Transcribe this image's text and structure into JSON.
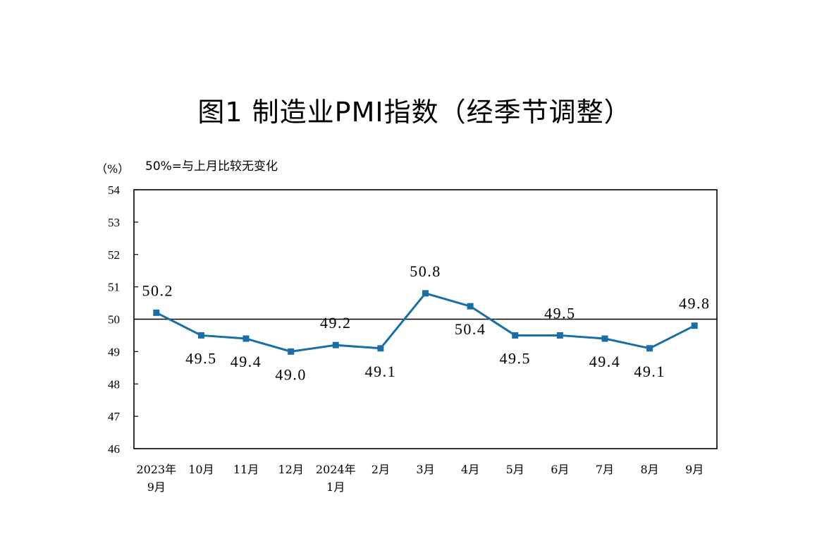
{
  "title": "图1  制造业PMI指数（经季节调整）",
  "unit_label": "（%）",
  "note": "50%=与上月比较无变化",
  "colors": {
    "series": "#1a6ea8",
    "marker": "#1a6ea8",
    "axis": "#000000"
  },
  "chart_data": {
    "type": "line",
    "title": "图1  制造业PMI指数（经季节调整）",
    "ylabel": "（%）",
    "annotation": "50%=与上月比较无变化",
    "ylim": [
      46,
      54
    ],
    "yticks": [
      46,
      47,
      48,
      49,
      50,
      51,
      52,
      53,
      54
    ],
    "reference_line": 50,
    "categories": [
      [
        "2023年",
        "9月"
      ],
      [
        "10月"
      ],
      [
        "11月"
      ],
      [
        "12月"
      ],
      [
        "2024年",
        "1月"
      ],
      [
        "2月"
      ],
      [
        "3月"
      ],
      [
        "4月"
      ],
      [
        "5月"
      ],
      [
        "6月"
      ],
      [
        "7月"
      ],
      [
        "8月"
      ],
      [
        "9月"
      ]
    ],
    "series": [
      {
        "values": [
          50.2,
          49.5,
          49.4,
          49.0,
          49.2,
          49.1,
          50.8,
          50.4,
          49.5,
          49.5,
          49.4,
          49.1,
          49.8
        ],
        "labels": [
          "50.2",
          "49.5",
          "49.4",
          "49.0",
          "49.2",
          "49.1",
          "50.8",
          "50.4",
          "49.5",
          "49.5",
          "49.4",
          "49.1",
          "49.8"
        ]
      }
    ],
    "grid": false,
    "marker": "square"
  }
}
